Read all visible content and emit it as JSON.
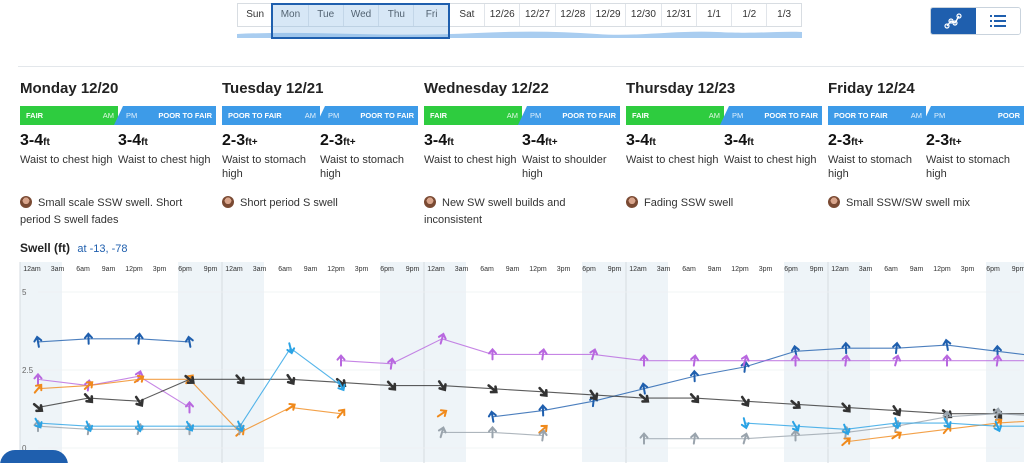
{
  "day_nav": {
    "days": [
      "Sun",
      "Mon",
      "Tue",
      "Wed",
      "Thu",
      "Fri",
      "Sat",
      "12/26",
      "12/27",
      "12/28",
      "12/29",
      "12/30",
      "12/31",
      "1/1",
      "1/2",
      "1/3"
    ]
  },
  "view_toggle": {
    "active": "chart-view",
    "icons": [
      "graph-icon",
      "list-icon"
    ]
  },
  "days": [
    {
      "title": "Monday 12/20",
      "am": {
        "rating": "FAIR",
        "class": "fair",
        "tag": "AM"
      },
      "pm": {
        "rating": "POOR TO FAIR",
        "class": "poor-fair",
        "tag": "PM"
      },
      "am_size": "3-4",
      "am_unit": "ft",
      "am_desc": "Waist to chest high",
      "pm_size": "3-4",
      "pm_unit": "ft",
      "pm_desc": "Waist to chest high",
      "note": "Small scale SSW swell. Short period S swell fades"
    },
    {
      "title": "Tuesday 12/21",
      "am": {
        "rating": "POOR TO FAIR",
        "class": "poor-fair",
        "tag": "AM"
      },
      "pm": {
        "rating": "POOR TO FAIR",
        "class": "poor-fair",
        "tag": "PM"
      },
      "am_size": "2-3",
      "am_unit": "ft+",
      "am_desc": "Waist to stomach high",
      "pm_size": "2-3",
      "pm_unit": "ft+",
      "pm_desc": "Waist to stomach high",
      "note": "Short period S swell"
    },
    {
      "title": "Wednesday 12/22",
      "am": {
        "rating": "FAIR",
        "class": "fair",
        "tag": "AM"
      },
      "pm": {
        "rating": "POOR TO FAIR",
        "class": "poor-fair",
        "tag": "PM"
      },
      "am_size": "3-4",
      "am_unit": "ft",
      "am_desc": "Waist to chest high",
      "pm_size": "3-4",
      "pm_unit": "ft+",
      "pm_desc": "Waist to shoulder high",
      "note": "New SW swell builds and inconsistent"
    },
    {
      "title": "Thursday 12/23",
      "am": {
        "rating": "FAIR",
        "class": "fair",
        "tag": "AM"
      },
      "pm": {
        "rating": "POOR TO FAIR",
        "class": "poor-fair",
        "tag": "PM"
      },
      "am_size": "3-4",
      "am_unit": "ft",
      "am_desc": "Waist to chest high",
      "pm_size": "3-4",
      "pm_unit": "ft",
      "pm_desc": "Waist to chest high",
      "note": "Fading SSW swell"
    },
    {
      "title": "Friday 12/24",
      "am": {
        "rating": "POOR TO FAIR",
        "class": "poor-fair",
        "tag": "AM"
      },
      "pm": {
        "rating": "POOR",
        "class": "poor",
        "tag": "PM"
      },
      "am_size": "2-3",
      "am_unit": "ft+",
      "am_desc": "Waist to stomach high",
      "pm_size": "2-3",
      "pm_unit": "ft+",
      "pm_desc": "Waist to stomach high",
      "note": "Small SSW/SW swell mix"
    }
  ],
  "swell": {
    "title": "Swell (ft)",
    "location": "at -13, -78",
    "hours": [
      "12am",
      "3am",
      "6am",
      "9am",
      "12pm",
      "3pm",
      "6pm",
      "9pm"
    ],
    "y_labels": [
      "5",
      "2.5",
      "0"
    ]
  },
  "chart_data": {
    "type": "line",
    "ylim": [
      0,
      5
    ],
    "x_unit": "hours from Monday 12am",
    "x": [
      0,
      6,
      12,
      18,
      24,
      30,
      36,
      42,
      48,
      54,
      60,
      66,
      72,
      78,
      84,
      90,
      96,
      102,
      108,
      114,
      120
    ],
    "series": [
      {
        "color": "#1f5fae",
        "values": [
          3.4,
          3.5,
          3.5,
          3.4,
          null,
          null,
          null,
          null,
          null,
          1.0,
          1.2,
          1.5,
          1.9,
          2.3,
          2.6,
          3.1,
          3.2,
          3.2,
          3.3,
          3.1,
          2.9
        ]
      },
      {
        "color": "#b867df",
        "values": [
          2.2,
          2.0,
          2.3,
          1.3,
          null,
          null,
          2.8,
          2.7,
          3.5,
          3.0,
          3.0,
          3.0,
          2.8,
          2.8,
          2.8,
          2.8,
          2.8,
          2.8,
          2.8,
          2.8,
          2.8
        ]
      },
      {
        "color": "#f08a1c",
        "values": [
          1.9,
          2.0,
          2.2,
          2.2,
          0.5,
          1.3,
          1.1,
          null,
          1.1,
          null,
          0.6,
          null,
          null,
          null,
          null,
          null,
          0.2,
          0.4,
          0.6,
          0.8,
          0.9
        ]
      },
      {
        "color": "#333333",
        "values": [
          1.3,
          1.6,
          1.5,
          2.2,
          2.2,
          2.2,
          2.1,
          2.0,
          2.0,
          1.9,
          1.8,
          1.7,
          1.6,
          1.6,
          1.5,
          1.4,
          1.3,
          1.2,
          1.1,
          1.1,
          1.1
        ]
      },
      {
        "color": "#9aa4ad",
        "values": [
          0.7,
          0.6,
          0.6,
          0.6,
          0.6,
          null,
          null,
          null,
          0.5,
          0.5,
          0.4,
          null,
          0.3,
          0.3,
          0.3,
          0.4,
          0.5,
          0.7,
          1.0,
          1.1,
          1.0
        ]
      },
      {
        "color": "#2aa3e5",
        "values": [
          0.8,
          0.7,
          0.7,
          0.7,
          0.7,
          3.2,
          2.0,
          null,
          null,
          null,
          null,
          null,
          null,
          null,
          0.8,
          0.7,
          0.6,
          0.8,
          0.8,
          0.7,
          0.7
        ]
      }
    ]
  }
}
